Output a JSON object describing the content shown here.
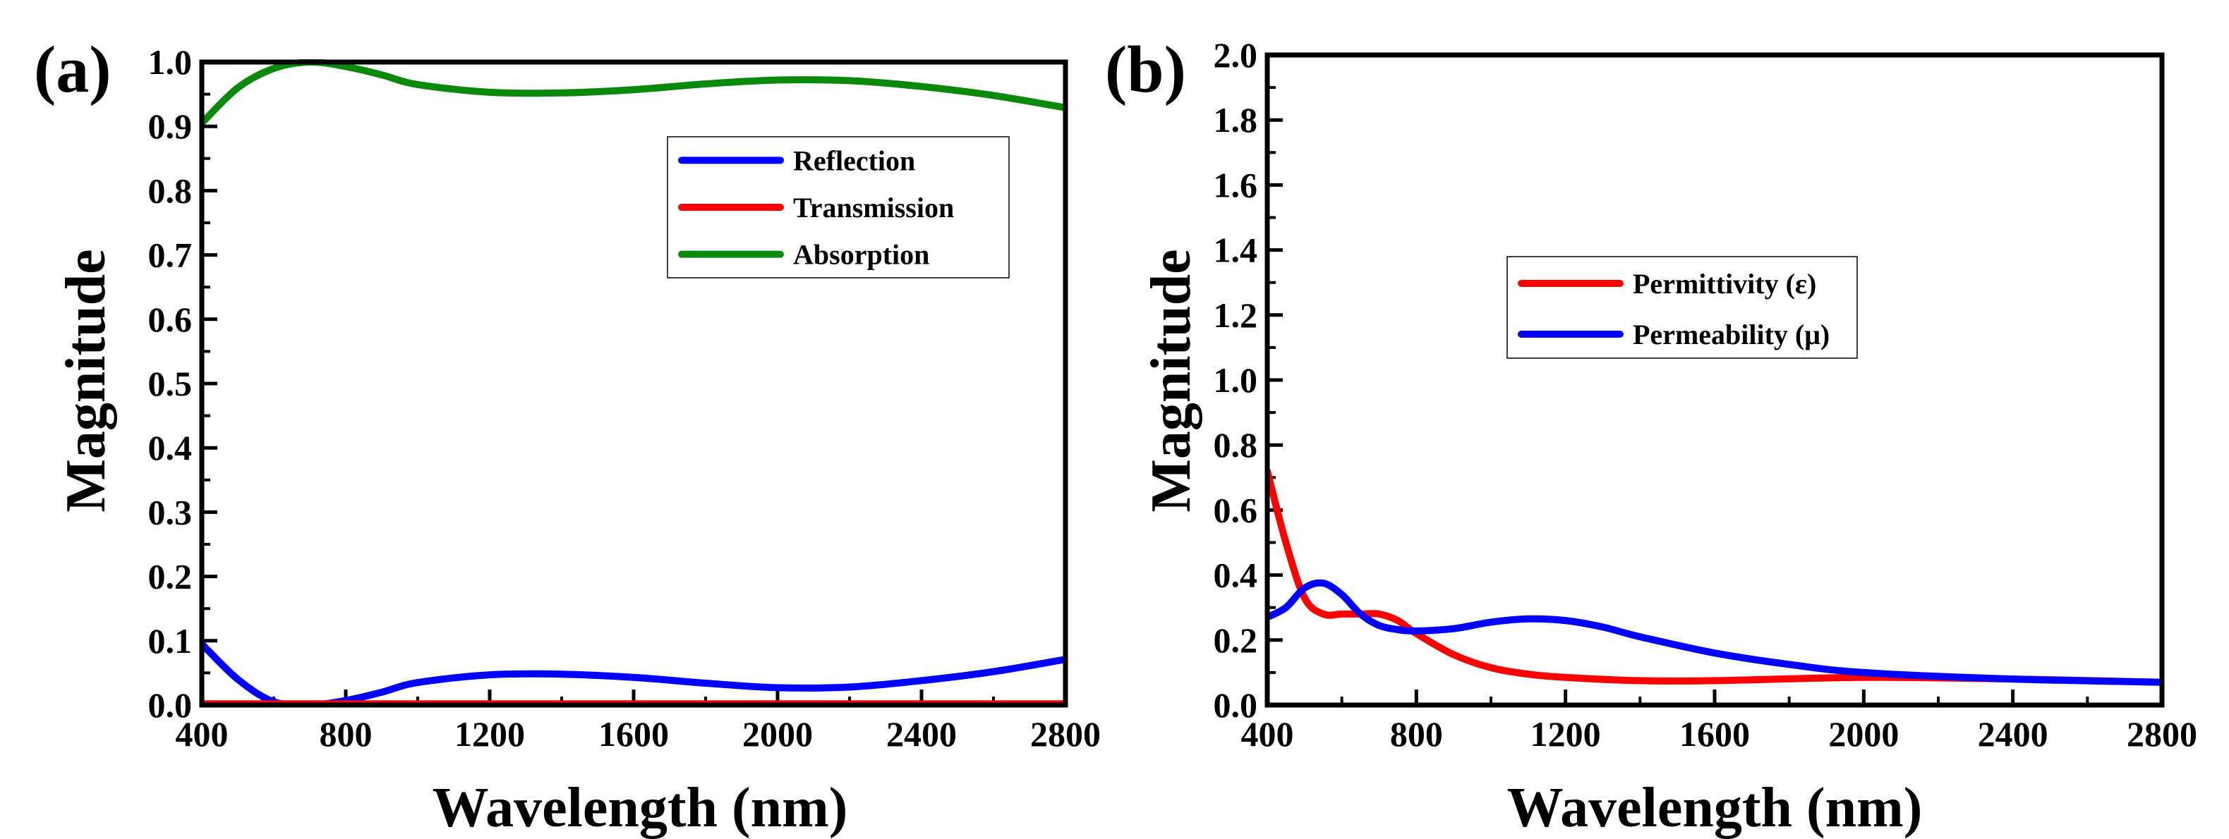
{
  "chart_data": [
    {
      "panel_label": "(a)",
      "type": "line",
      "xlabel": "Wavelength (nm)",
      "ylabel": "Magnitude",
      "xlim": [
        400,
        2800
      ],
      "ylim": [
        0,
        1.0
      ],
      "xticks": [
        400,
        800,
        1200,
        1600,
        2000,
        2400,
        2800
      ],
      "xtick_labels": [
        "400",
        "800",
        "1200",
        "1600",
        "2000",
        "2400",
        "2800"
      ],
      "yticks": [
        0,
        0.1,
        0.2,
        0.3,
        0.4,
        0.5,
        0.6,
        0.7,
        0.8,
        0.9,
        1.0
      ],
      "ytick_labels": [
        "0.0",
        "0.1",
        "0.2",
        "0.3",
        "0.4",
        "0.5",
        "0.6",
        "0.7",
        "0.8",
        "0.9",
        "1.0"
      ],
      "legend_position": "upper-right",
      "series": [
        {
          "name": "Reflection",
          "color": "#0000ff",
          "x": [
            400,
            500,
            600,
            700,
            800,
            900,
            1000,
            1200,
            1400,
            1600,
            1800,
            2000,
            2200,
            2400,
            2600,
            2800
          ],
          "y": [
            0.095,
            0.04,
            0.005,
            0.0,
            0.007,
            0.02,
            0.035,
            0.047,
            0.048,
            0.043,
            0.034,
            0.027,
            0.028,
            0.038,
            0.052,
            0.071
          ]
        },
        {
          "name": "Transmission",
          "color": "#ff0000",
          "x": [
            400,
            800,
            1200,
            1600,
            2000,
            2400,
            2800
          ],
          "y": [
            0.002,
            0.002,
            0.002,
            0.002,
            0.002,
            0.002,
            0.002
          ]
        },
        {
          "name": "Absorption",
          "color": "#0a8a0a",
          "x": [
            400,
            500,
            600,
            700,
            800,
            900,
            1000,
            1200,
            1400,
            1600,
            1800,
            2000,
            2200,
            2400,
            2600,
            2800
          ],
          "y": [
            0.905,
            0.96,
            0.99,
            1.0,
            0.993,
            0.98,
            0.965,
            0.953,
            0.952,
            0.957,
            0.966,
            0.972,
            0.971,
            0.962,
            0.948,
            0.929
          ]
        }
      ]
    },
    {
      "panel_label": "(b)",
      "type": "line",
      "xlabel": "Wavelength (nm)",
      "ylabel": "Magnitude",
      "xlim": [
        400,
        2800
      ],
      "ylim": [
        0,
        2.0
      ],
      "xticks": [
        400,
        800,
        1200,
        1600,
        2000,
        2400,
        2800
      ],
      "xtick_labels": [
        "400",
        "800",
        "1200",
        "1600",
        "2000",
        "2400",
        "2800"
      ],
      "yticks": [
        0,
        0.2,
        0.4,
        0.6,
        0.8,
        1.0,
        1.2,
        1.4,
        1.6,
        1.8,
        2.0
      ],
      "ytick_labels": [
        "0.0",
        "0.2",
        "0.4",
        "0.6",
        "0.8",
        "1.0",
        "1.2",
        "1.4",
        "1.6",
        "1.8",
        "2.0"
      ],
      "legend_position": "center",
      "series": [
        {
          "name": "Permittivity (ε)",
          "color": "#ff0000",
          "x": [
            400,
            450,
            500,
            550,
            600,
            650,
            700,
            750,
            800,
            900,
            1000,
            1100,
            1200,
            1400,
            1600,
            2000,
            2400,
            2800
          ],
          "y": [
            0.72,
            0.5,
            0.33,
            0.28,
            0.28,
            0.28,
            0.28,
            0.26,
            0.22,
            0.155,
            0.115,
            0.095,
            0.085,
            0.075,
            0.075,
            0.085,
            0.08,
            0.07
          ]
        },
        {
          "name": "Permeability (μ)",
          "color": "#0000ff",
          "x": [
            400,
            450,
            500,
            550,
            600,
            650,
            700,
            750,
            800,
            900,
            1000,
            1100,
            1200,
            1300,
            1400,
            1600,
            1800,
            2000,
            2400,
            2800
          ],
          "y": [
            0.27,
            0.3,
            0.36,
            0.375,
            0.34,
            0.28,
            0.245,
            0.232,
            0.228,
            0.235,
            0.255,
            0.265,
            0.26,
            0.24,
            0.21,
            0.16,
            0.125,
            0.1,
            0.08,
            0.07
          ]
        }
      ]
    }
  ]
}
